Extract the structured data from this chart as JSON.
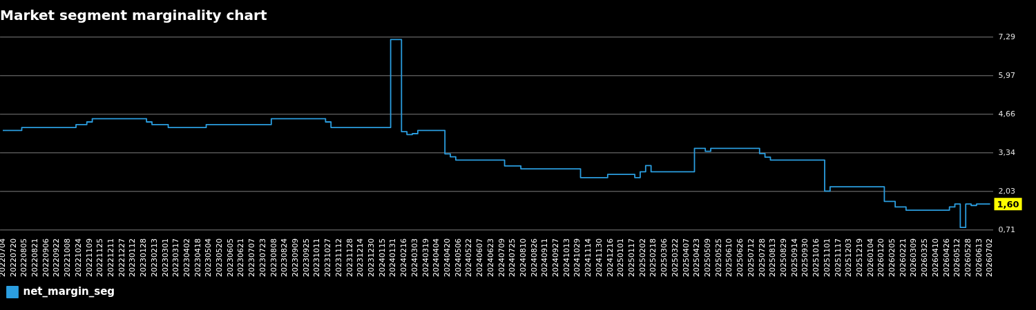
{
  "chart_data": {
    "type": "step",
    "title": "Market segment marginality chart",
    "categories": [
      "20220704",
      null,
      "20220720",
      null,
      "20220805",
      null,
      "20220821",
      null,
      "20220906",
      null,
      "20220922",
      null,
      "20221008",
      null,
      "20221024",
      null,
      "20221109",
      null,
      "20221125",
      null,
      "20221211",
      null,
      "20221227",
      null,
      "20230112",
      null,
      "20230128",
      null,
      "20230213",
      null,
      "20230301",
      null,
      "20230317",
      null,
      "20230402",
      null,
      "20230418",
      null,
      "20230504",
      null,
      "20230520",
      null,
      "20230605",
      null,
      "20230621",
      null,
      "20230707",
      null,
      "20230723",
      null,
      "20230808",
      null,
      "20230824",
      null,
      "20230909",
      null,
      "20230925",
      null,
      "20231011",
      null,
      "20231027",
      null,
      "20231112",
      null,
      "20231128",
      null,
      "20231214",
      null,
      "20231230",
      null,
      "20240115",
      null,
      "20240131",
      null,
      "20240216",
      null,
      "20240303",
      null,
      "20240319",
      null,
      "20240404",
      null,
      "20240420",
      null,
      "20240506",
      null,
      "20240522",
      null,
      "20240607",
      null,
      "20240623",
      null,
      "20240709",
      null,
      "20240725",
      null,
      "20240810",
      null,
      "20240826",
      null,
      "20240911",
      null,
      "20240927",
      null,
      "20241013",
      null,
      "20241029",
      null,
      "20241114",
      null,
      "20241130",
      null,
      "20241216",
      null,
      "20250101",
      null,
      "20250117",
      null,
      "20250202",
      null,
      "20250218",
      null,
      "20250306",
      null,
      "20250322",
      null,
      "20250407",
      null,
      "20250423",
      null,
      "20250509",
      null,
      "20250525",
      null,
      "20250610",
      null,
      "20250626",
      null,
      "20250712",
      null,
      "20250728",
      null,
      "20250813",
      null,
      "20250829",
      null,
      "20250914",
      null,
      "20250930",
      null,
      "20251016",
      null,
      "20251101",
      null,
      "20251117",
      null,
      "20251203",
      null,
      "20251219",
      null,
      "20260104",
      null,
      "20260120",
      null,
      "20260205",
      null,
      "20260221",
      null,
      "20260309",
      null,
      "20260325",
      null,
      "20260410",
      null,
      "20260426",
      null,
      "20260512",
      null,
      "20260528",
      null,
      "20260613",
      null,
      "20260702"
    ],
    "series": [
      {
        "name": "net_margin_seg",
        "color": "#2b9ee0",
        "values": [
          4.11,
          4.11,
          4.11,
          4.11,
          4.21,
          4.21,
          4.21,
          4.21,
          4.21,
          4.21,
          4.21,
          4.21,
          4.21,
          4.21,
          4.31,
          4.31,
          4.4,
          4.51,
          4.51,
          4.51,
          4.51,
          4.51,
          4.51,
          4.51,
          4.51,
          4.51,
          4.51,
          4.4,
          4.31,
          4.31,
          4.31,
          4.21,
          4.21,
          4.21,
          4.21,
          4.21,
          4.21,
          4.21,
          4.31,
          4.31,
          4.31,
          4.31,
          4.31,
          4.31,
          4.31,
          4.31,
          4.31,
          4.31,
          4.31,
          4.31,
          4.51,
          4.51,
          4.51,
          4.51,
          4.51,
          4.51,
          4.51,
          4.51,
          4.51,
          4.51,
          4.4,
          4.21,
          4.21,
          4.21,
          4.21,
          4.21,
          4.21,
          4.21,
          4.21,
          4.21,
          4.21,
          4.21,
          7.21,
          7.21,
          4.07,
          3.97,
          4.0,
          4.11,
          4.11,
          4.11,
          4.11,
          4.11,
          3.31,
          3.21,
          3.1,
          3.1,
          3.1,
          3.1,
          3.1,
          3.1,
          3.1,
          3.1,
          3.1,
          2.9,
          2.9,
          2.9,
          2.8,
          2.8,
          2.8,
          2.8,
          2.8,
          2.8,
          2.8,
          2.8,
          2.8,
          2.8,
          2.8,
          2.5,
          2.5,
          2.5,
          2.5,
          2.5,
          2.61,
          2.61,
          2.61,
          2.61,
          2.61,
          2.5,
          2.7,
          2.91,
          2.7,
          2.7,
          2.7,
          2.7,
          2.7,
          2.7,
          2.7,
          2.7,
          3.5,
          3.5,
          3.4,
          3.5,
          3.5,
          3.5,
          3.5,
          3.5,
          3.5,
          3.5,
          3.5,
          3.5,
          3.32,
          3.2,
          3.1,
          3.1,
          3.1,
          3.1,
          3.1,
          3.1,
          3.1,
          3.1,
          3.1,
          3.1,
          2.04,
          2.19,
          2.19,
          2.19,
          2.19,
          2.19,
          2.19,
          2.19,
          2.19,
          2.19,
          2.19,
          1.69,
          1.69,
          1.5,
          1.5,
          1.39,
          1.39,
          1.39,
          1.39,
          1.39,
          1.39,
          1.39,
          1.39,
          1.5,
          1.6,
          0.8,
          1.6,
          1.55,
          1.6,
          1.6,
          1.6
        ]
      }
    ],
    "ylim": [
      0.71,
      7.29
    ],
    "yticks": [
      {
        "value": 0.71,
        "label": "0,71"
      },
      {
        "value": 2.03,
        "label": "2,03"
      },
      {
        "value": 3.34,
        "label": "3,34"
      },
      {
        "value": 4.66,
        "label": "4,66"
      },
      {
        "value": 5.97,
        "label": "5,97"
      },
      {
        "value": 7.29,
        "label": "7,29"
      }
    ],
    "annotations": [
      {
        "text": "1,60",
        "x": "20260702",
        "y": 1.6
      }
    ],
    "grid": "y",
    "legend": "bottom left",
    "marker": "none"
  }
}
